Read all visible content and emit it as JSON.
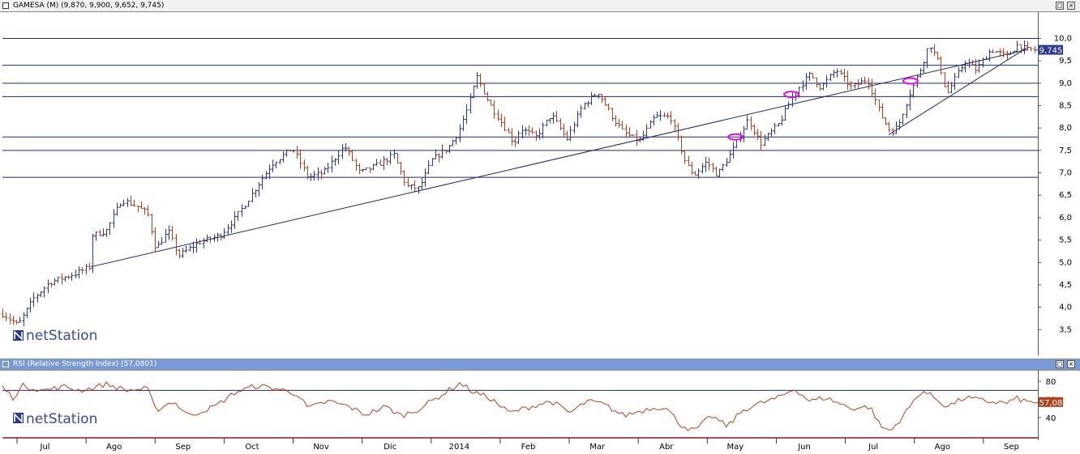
{
  "main_panel": {
    "title": "GAMESA (M) (9,870, 9,900, 9,652, 9,745)",
    "last_price_label": "9,745",
    "watermark": "netStation",
    "restore_icon": "restore-icon",
    "close_icon": "close-icon"
  },
  "rsi_panel": {
    "title": "RSI (Relative Strength Index) (57,0801)",
    "last_value_label": "57,08",
    "watermark": "netStation"
  },
  "colors": {
    "up_bar": "#2b3a8c",
    "down_bar": "#b5401c",
    "trend_line": "#1f2a6e",
    "marker": "#e010e0",
    "rsi_line": "#b5401c",
    "rsi_header": "#7a9ad6",
    "last_price_bg": "#2b3a8c",
    "last_rsi_bg": "#b5401c"
  },
  "chart_data": [
    {
      "type": "ohlc",
      "x_labels": [
        "Jul",
        "Ago",
        "Sep",
        "Oct",
        "Nov",
        "Dic",
        "2014",
        "Feb",
        "Mar",
        "Abr",
        "May",
        "Jun",
        "Jul",
        "Ago",
        "Sep"
      ],
      "y_ticks": [
        "3,5",
        "4,0",
        "4,5",
        "5,0",
        "5,5",
        "6,0",
        "6,5",
        "7,0",
        "7,5",
        "8,0",
        "8,5",
        "9,0",
        "9,5",
        "10,0"
      ],
      "ylim": [
        3.0,
        10.55
      ],
      "last_value": 9.745,
      "horizontal_levels": [
        10.0,
        9.4,
        9.0,
        8.7,
        7.8,
        7.5,
        6.9
      ],
      "trend_lines": [
        {
          "from": [
            0.085,
            4.9
          ],
          "to": [
            0.99,
            9.75
          ]
        },
        {
          "from": [
            0.856,
            7.85
          ],
          "to": [
            0.99,
            9.8
          ]
        }
      ],
      "markers": [
        [
          0.708,
          7.8
        ],
        [
          0.762,
          8.75
        ],
        [
          0.877,
          9.05
        ]
      ],
      "anchors": [
        [
          0.0,
          3.85
        ],
        [
          0.015,
          3.6
        ],
        [
          0.03,
          4.2
        ],
        [
          0.045,
          4.55
        ],
        [
          0.07,
          4.75
        ],
        [
          0.084,
          4.9
        ],
        [
          0.086,
          5.6
        ],
        [
          0.1,
          5.7
        ],
        [
          0.115,
          6.4
        ],
        [
          0.13,
          6.25
        ],
        [
          0.14,
          6.1
        ],
        [
          0.148,
          5.3
        ],
        [
          0.16,
          5.7
        ],
        [
          0.17,
          5.15
        ],
        [
          0.19,
          5.45
        ],
        [
          0.21,
          5.6
        ],
        [
          0.225,
          6.0
        ],
        [
          0.24,
          6.5
        ],
        [
          0.26,
          7.2
        ],
        [
          0.28,
          7.55
        ],
        [
          0.295,
          6.9
        ],
        [
          0.31,
          7.0
        ],
        [
          0.33,
          7.6
        ],
        [
          0.345,
          7.0
        ],
        [
          0.36,
          7.15
        ],
        [
          0.378,
          7.4
        ],
        [
          0.39,
          6.7
        ],
        [
          0.402,
          6.65
        ],
        [
          0.415,
          7.3
        ],
        [
          0.43,
          7.55
        ],
        [
          0.44,
          7.9
        ],
        [
          0.45,
          8.5
        ],
        [
          0.458,
          9.15
        ],
        [
          0.47,
          8.55
        ],
        [
          0.484,
          8.05
        ],
        [
          0.494,
          7.65
        ],
        [
          0.5,
          8.0
        ],
        [
          0.515,
          7.8
        ],
        [
          0.53,
          8.3
        ],
        [
          0.545,
          7.75
        ],
        [
          0.56,
          8.5
        ],
        [
          0.575,
          8.8
        ],
        [
          0.59,
          8.2
        ],
        [
          0.6,
          7.9
        ],
        [
          0.615,
          7.7
        ],
        [
          0.63,
          8.25
        ],
        [
          0.645,
          8.25
        ],
        [
          0.66,
          7.2
        ],
        [
          0.668,
          6.95
        ],
        [
          0.68,
          7.25
        ],
        [
          0.69,
          6.95
        ],
        [
          0.705,
          7.5
        ],
        [
          0.72,
          8.2
        ],
        [
          0.732,
          7.65
        ],
        [
          0.75,
          8.1
        ],
        [
          0.765,
          8.8
        ],
        [
          0.78,
          9.2
        ],
        [
          0.79,
          8.9
        ],
        [
          0.805,
          9.3
        ],
        [
          0.82,
          8.9
        ],
        [
          0.835,
          9.1
        ],
        [
          0.848,
          8.3
        ],
        [
          0.858,
          7.9
        ],
        [
          0.865,
          8.05
        ],
        [
          0.875,
          8.7
        ],
        [
          0.888,
          9.4
        ],
        [
          0.895,
          9.9
        ],
        [
          0.905,
          9.4
        ],
        [
          0.912,
          8.75
        ],
        [
          0.92,
          9.1
        ],
        [
          0.93,
          9.5
        ],
        [
          0.94,
          9.3
        ],
        [
          0.955,
          9.75
        ],
        [
          0.97,
          9.6
        ],
        [
          0.98,
          9.85
        ],
        [
          0.99,
          9.745
        ]
      ]
    },
    {
      "type": "line",
      "name": "RSI (Relative Strength Index)",
      "y_ticks": [
        "40",
        "60",
        "80"
      ],
      "ylim": [
        22,
        90
      ],
      "levels": [
        70
      ],
      "last_value": 57.08,
      "anchors": [
        [
          0.0,
          74
        ],
        [
          0.01,
          62
        ],
        [
          0.02,
          75
        ],
        [
          0.04,
          70
        ],
        [
          0.06,
          74
        ],
        [
          0.075,
          70
        ],
        [
          0.085,
          72
        ],
        [
          0.1,
          77
        ],
        [
          0.12,
          70
        ],
        [
          0.14,
          72
        ],
        [
          0.148,
          48
        ],
        [
          0.165,
          58
        ],
        [
          0.18,
          42
        ],
        [
          0.19,
          46
        ],
        [
          0.205,
          52
        ],
        [
          0.225,
          68
        ],
        [
          0.245,
          75
        ],
        [
          0.265,
          72
        ],
        [
          0.285,
          66
        ],
        [
          0.295,
          50
        ],
        [
          0.315,
          58
        ],
        [
          0.335,
          52
        ],
        [
          0.35,
          43
        ],
        [
          0.37,
          52
        ],
        [
          0.385,
          42
        ],
        [
          0.4,
          48
        ],
        [
          0.42,
          62
        ],
        [
          0.442,
          78
        ],
        [
          0.455,
          68
        ],
        [
          0.47,
          62
        ],
        [
          0.49,
          45
        ],
        [
          0.51,
          52
        ],
        [
          0.53,
          58
        ],
        [
          0.548,
          45
        ],
        [
          0.565,
          58
        ],
        [
          0.58,
          55
        ],
        [
          0.6,
          42
        ],
        [
          0.625,
          50
        ],
        [
          0.64,
          52
        ],
        [
          0.655,
          32
        ],
        [
          0.668,
          25
        ],
        [
          0.685,
          42
        ],
        [
          0.7,
          30
        ],
        [
          0.715,
          48
        ],
        [
          0.73,
          55
        ],
        [
          0.75,
          62
        ],
        [
          0.765,
          72
        ],
        [
          0.78,
          58
        ],
        [
          0.795,
          62
        ],
        [
          0.82,
          50
        ],
        [
          0.838,
          52
        ],
        [
          0.848,
          30
        ],
        [
          0.858,
          25
        ],
        [
          0.87,
          42
        ],
        [
          0.888,
          70
        ],
        [
          0.9,
          62
        ],
        [
          0.912,
          52
        ],
        [
          0.93,
          62
        ],
        [
          0.95,
          58
        ],
        [
          0.97,
          56
        ],
        [
          0.98,
          61
        ],
        [
          0.99,
          57.08
        ]
      ]
    }
  ]
}
